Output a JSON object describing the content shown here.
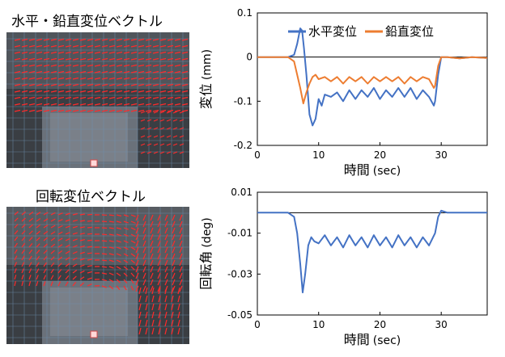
{
  "panels": {
    "top_title": "水平・鉛直変位ベクトル",
    "bottom_title": "回転変位ベクトル"
  },
  "chart_data": [
    {
      "type": "line",
      "xlabel": "時間",
      "xlabel_unit": "(sec)",
      "ylabel": "変位",
      "ylabel_unit": "(mm)",
      "xlim": [
        0,
        37.5
      ],
      "ylim": [
        -0.2,
        0.1
      ],
      "xticks": [
        0,
        10,
        20,
        30
      ],
      "yticks": [
        0.1,
        0,
        -0.1,
        -0.2
      ],
      "ytick_labels": [
        "0.1",
        "0",
        "-0.1",
        "-0.2"
      ],
      "legend_position": "top-right",
      "reference_line": 0,
      "series": [
        {
          "name": "水平変位",
          "color": "#4472C4",
          "x": [
            0,
            5,
            6,
            6.5,
            7,
            7.3,
            7.6,
            8,
            8.5,
            9,
            9.5,
            10,
            10.5,
            11,
            12,
            13,
            14,
            15,
            16,
            17,
            18,
            19,
            20,
            21,
            22,
            23,
            24,
            25,
            26,
            27,
            28,
            28.8,
            29,
            29.5,
            30,
            31,
            33,
            35,
            37.5
          ],
          "y": [
            0,
            0,
            0.005,
            0.03,
            0.065,
            0.06,
            0.02,
            -0.04,
            -0.13,
            -0.155,
            -0.14,
            -0.095,
            -0.11,
            -0.085,
            -0.09,
            -0.08,
            -0.1,
            -0.075,
            -0.095,
            -0.075,
            -0.09,
            -0.07,
            -0.095,
            -0.075,
            -0.09,
            -0.07,
            -0.09,
            -0.07,
            -0.095,
            -0.075,
            -0.09,
            -0.11,
            -0.1,
            -0.04,
            0,
            0,
            -0.003,
            0,
            -0.002
          ]
        },
        {
          "name": "鉛直変位",
          "color": "#ED7D31",
          "x": [
            0,
            5,
            6,
            7,
            7.5,
            8,
            8.5,
            9,
            9.5,
            10,
            11,
            12,
            13,
            14,
            15,
            16,
            17,
            18,
            19,
            20,
            21,
            22,
            23,
            24,
            25,
            26,
            27,
            28,
            28.8,
            29,
            29.5,
            30,
            31,
            33,
            35,
            37.5
          ],
          "y": [
            0,
            0,
            -0.01,
            -0.07,
            -0.105,
            -0.08,
            -0.06,
            -0.045,
            -0.04,
            -0.05,
            -0.045,
            -0.055,
            -0.045,
            -0.06,
            -0.045,
            -0.055,
            -0.045,
            -0.06,
            -0.045,
            -0.055,
            -0.045,
            -0.055,
            -0.045,
            -0.06,
            -0.045,
            -0.055,
            -0.045,
            -0.05,
            -0.07,
            -0.065,
            -0.02,
            0,
            0,
            -0.003,
            0,
            -0.002
          ]
        }
      ]
    },
    {
      "type": "line",
      "xlabel": "時間",
      "xlabel_unit": "(sec)",
      "ylabel": "回転角",
      "ylabel_unit": "(deg)",
      "xlim": [
        0,
        37.5
      ],
      "ylim": [
        -0.05,
        0.01
      ],
      "xticks": [
        0,
        10,
        20,
        30
      ],
      "yticks": [
        0.01,
        -0.01,
        -0.03,
        -0.05
      ],
      "ytick_labels": [
        "0.01",
        "-0.01",
        "-0.03",
        "-0.05"
      ],
      "reference_line": 0,
      "series": [
        {
          "color": "#4472C4",
          "x": [
            0,
            5,
            6,
            6.5,
            7,
            7.4,
            7.8,
            8.3,
            8.8,
            9.3,
            10,
            11,
            12,
            13,
            14,
            15,
            16,
            17,
            18,
            19,
            20,
            21,
            22,
            23,
            24,
            25,
            26,
            27,
            28,
            29,
            29.5,
            30,
            31,
            33,
            35,
            37.5
          ],
          "y": [
            0,
            0,
            -0.002,
            -0.01,
            -0.025,
            -0.039,
            -0.03,
            -0.016,
            -0.012,
            -0.014,
            -0.015,
            -0.011,
            -0.016,
            -0.012,
            -0.017,
            -0.011,
            -0.016,
            -0.012,
            -0.017,
            -0.011,
            -0.016,
            -0.012,
            -0.017,
            -0.011,
            -0.016,
            -0.012,
            -0.017,
            -0.012,
            -0.016,
            -0.01,
            -0.002,
            0.001,
            0,
            0,
            0,
            0
          ]
        }
      ]
    }
  ]
}
